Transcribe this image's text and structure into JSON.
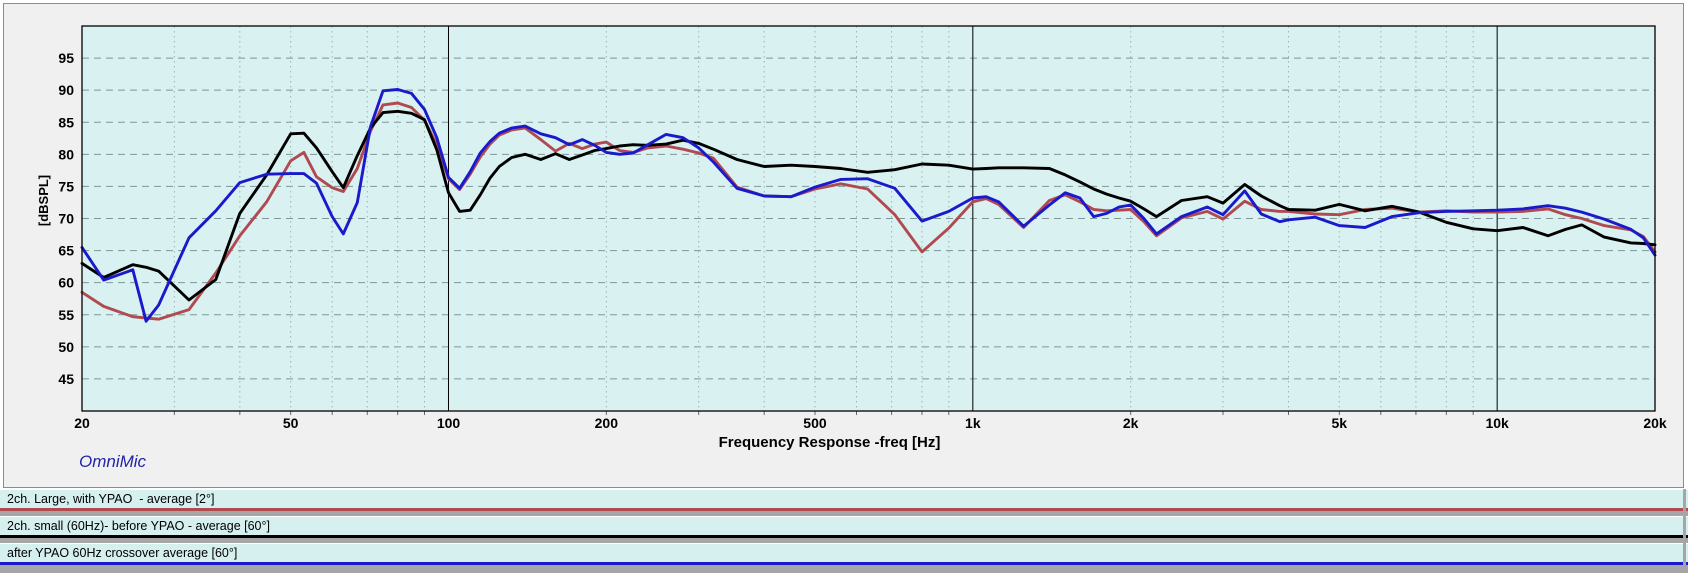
{
  "branding": "OmniMic",
  "window": {
    "bg": "#ffffff",
    "panel_bg": "#f0f0f0",
    "panel_border": "#8c8c8c"
  },
  "legend": {
    "row_bg": "#d6efef",
    "separator": "#a6a6a6",
    "text_color": "#000000"
  },
  "chart_data": {
    "type": "line",
    "title": "",
    "xlabel": "Frequency Response -freq [Hz]",
    "ylabel": "[dBSPL]",
    "x_scale": "log",
    "xlim": [
      20,
      20000
    ],
    "ylim": [
      40,
      100
    ],
    "grid": true,
    "legend_position": "bottom",
    "plot_bg": "#d9f1f1",
    "grid_color": "#7f9797",
    "minor_grid_color": "#9fb3b3",
    "major_line_color": "#000000",
    "y_ticks": [
      45,
      50,
      55,
      60,
      65,
      70,
      75,
      80,
      85,
      90,
      95
    ],
    "x_ticks": [
      {
        "f": 20,
        "label": "20"
      },
      {
        "f": 50,
        "label": "50"
      },
      {
        "f": 100,
        "label": "100"
      },
      {
        "f": 200,
        "label": "200"
      },
      {
        "f": 500,
        "label": "500"
      },
      {
        "f": 1000,
        "label": "1k"
      },
      {
        "f": 2000,
        "label": "2k"
      },
      {
        "f": 5000,
        "label": "5k"
      },
      {
        "f": 10000,
        "label": "10k"
      },
      {
        "f": 20000,
        "label": "20k"
      }
    ],
    "x_minor": [
      30,
      40,
      50,
      60,
      70,
      80,
      90,
      200,
      300,
      400,
      500,
      600,
      700,
      800,
      900,
      2000,
      3000,
      4000,
      5000,
      6000,
      7000,
      8000,
      9000
    ],
    "x_major_lines": [
      100,
      1000,
      10000
    ],
    "freqs": [
      20,
      22,
      25,
      26.5,
      28,
      32,
      36,
      40,
      45,
      50,
      53,
      56,
      60,
      63,
      67,
      71,
      75,
      80,
      85,
      90,
      95,
      100,
      105,
      110,
      115,
      120,
      125,
      132,
      140,
      150,
      160,
      170,
      180,
      190,
      200,
      212,
      225,
      240,
      260,
      280,
      300,
      320,
      355,
      400,
      450,
      500,
      560,
      630,
      710,
      800,
      900,
      1000,
      1060,
      1120,
      1250,
      1400,
      1500,
      1600,
      1700,
      1800,
      1900,
      2000,
      2120,
      2240,
      2500,
      2800,
      3000,
      3300,
      3550,
      3850,
      4000,
      4500,
      5000,
      5600,
      6300,
      7100,
      8000,
      9000,
      10000,
      11200,
      12500,
      13500,
      14500,
      16000,
      18000,
      19000,
      20000
    ],
    "series": [
      {
        "name": "2ch. Large, with YPAO  - average [2°]",
        "color": "#b04a50",
        "values": [
          58.5,
          56.3,
          54.7,
          54.5,
          54.3,
          55.8,
          61.5,
          67.3,
          72.6,
          79.0,
          80.3,
          76.5,
          74.8,
          74.2,
          77.8,
          83.6,
          87.7,
          88.0,
          87.3,
          85.3,
          81.5,
          76.2,
          74.5,
          76.9,
          79.6,
          81.6,
          83.0,
          83.8,
          84.1,
          82.3,
          80.5,
          81.7,
          80.9,
          81.6,
          81.9,
          80.6,
          80.3,
          81.0,
          81.3,
          80.8,
          80.2,
          79.4,
          74.9,
          73.5,
          73.4,
          74.6,
          75.4,
          74.6,
          70.6,
          64.8,
          68.5,
          72.6,
          73.1,
          72.2,
          68.6,
          72.8,
          73.7,
          72.6,
          71.4,
          71.2,
          71.3,
          71.4,
          69.5,
          67.3,
          70.1,
          71.1,
          69.9,
          72.7,
          71.4,
          71.1,
          71.1,
          70.7,
          70.6,
          71.4,
          71.6,
          71.0,
          71.2,
          71.0,
          71.0,
          71.1,
          71.5,
          70.6,
          70.0,
          68.9,
          68.2,
          67.2,
          64.8
        ]
      },
      {
        "name": "2ch. small (60Hz)- before YPAO - average [60°]",
        "color": "#000000",
        "values": [
          63.0,
          60.8,
          62.8,
          62.4,
          61.8,
          57.3,
          60.5,
          70.8,
          76.8,
          83.2,
          83.3,
          81.0,
          77.3,
          74.8,
          79.8,
          84.1,
          86.5,
          86.7,
          86.4,
          85.4,
          80.7,
          74.0,
          71.1,
          71.3,
          73.7,
          76.3,
          78.1,
          79.5,
          80.0,
          79.2,
          80.1,
          79.2,
          79.9,
          80.6,
          80.9,
          81.3,
          81.5,
          81.4,
          81.6,
          82.2,
          81.7,
          80.8,
          79.2,
          78.1,
          78.3,
          78.1,
          77.8,
          77.2,
          77.6,
          78.5,
          78.3,
          77.7,
          77.8,
          77.9,
          77.9,
          77.8,
          76.8,
          75.7,
          74.6,
          73.8,
          73.2,
          72.7,
          71.5,
          70.3,
          72.8,
          73.4,
          72.4,
          75.3,
          73.5,
          72.0,
          71.4,
          71.3,
          72.2,
          71.2,
          71.9,
          71.0,
          69.4,
          68.4,
          68.1,
          68.6,
          67.3,
          68.3,
          69.0,
          67.1,
          66.2,
          66.1,
          65.9
        ]
      },
      {
        "name": "after YPAO 60Hz crossover average [60°]",
        "color": "#1a1acd",
        "values": [
          65.5,
          60.4,
          62.0,
          54.0,
          56.5,
          67.0,
          71.2,
          75.6,
          76.9,
          77.0,
          77.0,
          75.5,
          70.3,
          67.6,
          72.5,
          84.3,
          89.9,
          90.1,
          89.5,
          87.0,
          82.6,
          76.4,
          74.7,
          77.3,
          80.2,
          82.0,
          83.3,
          84.1,
          84.4,
          83.2,
          82.6,
          81.5,
          82.3,
          81.4,
          80.3,
          80.0,
          80.2,
          81.5,
          83.1,
          82.6,
          81.0,
          78.8,
          74.7,
          73.5,
          73.4,
          74.9,
          76.1,
          76.2,
          74.7,
          69.6,
          71.1,
          73.2,
          73.4,
          72.6,
          68.8,
          72.1,
          74.0,
          73.2,
          70.3,
          70.8,
          71.8,
          72.1,
          70.0,
          67.6,
          70.3,
          71.8,
          70.6,
          74.3,
          70.7,
          69.5,
          69.8,
          70.2,
          68.9,
          68.6,
          70.3,
          70.9,
          71.1,
          71.2,
          71.3,
          71.5,
          72.0,
          71.6,
          71.0,
          69.9,
          68.3,
          67.0,
          64.3
        ]
      }
    ]
  }
}
